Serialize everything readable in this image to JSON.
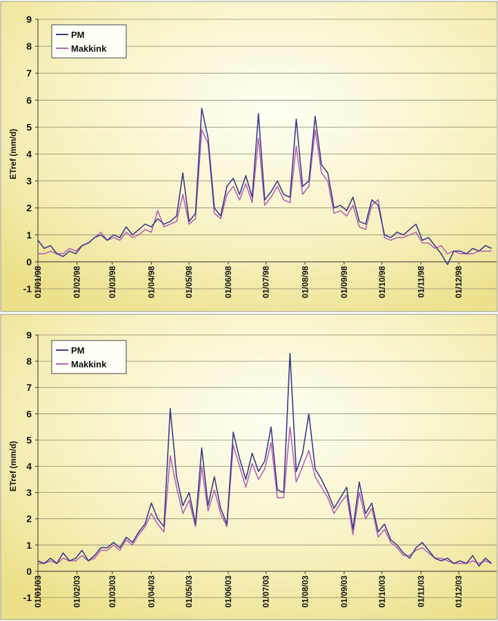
{
  "chart_data": [
    {
      "type": "line",
      "ylabel": "ETref (mm/d)",
      "x": [
        "01/01/98",
        "06/01/98",
        "11/01/98",
        "16/01/98",
        "21/01/98",
        "26/01/98",
        "31/01/98",
        "05/02/98",
        "10/02/98",
        "15/02/98",
        "20/02/98",
        "25/02/98",
        "02/03/98",
        "07/03/98",
        "12/03/98",
        "17/03/98",
        "22/03/98",
        "27/03/98",
        "01/04/98",
        "06/04/98",
        "11/04/98",
        "16/04/98",
        "21/04/98",
        "26/04/98",
        "01/05/98",
        "06/05/98",
        "11/05/98",
        "16/05/98",
        "21/05/98",
        "26/05/98",
        "31/05/98",
        "05/06/98",
        "10/06/98",
        "15/06/98",
        "20/06/98",
        "25/06/98",
        "30/06/98",
        "05/07/98",
        "10/07/98",
        "15/07/98",
        "20/07/98",
        "25/07/98",
        "30/07/98",
        "04/08/98",
        "09/08/98",
        "14/08/98",
        "19/08/98",
        "24/08/98",
        "29/08/98",
        "03/09/98",
        "08/09/98",
        "13/09/98",
        "18/09/98",
        "23/09/98",
        "28/09/98",
        "03/10/98",
        "08/10/98",
        "13/10/98",
        "18/10/98",
        "23/10/98",
        "28/10/98",
        "02/11/98",
        "07/11/98",
        "12/11/98",
        "17/11/98",
        "22/11/98",
        "27/11/98",
        "02/12/98",
        "07/12/98",
        "12/12/98",
        "17/12/98",
        "22/12/98",
        "27/12/98"
      ],
      "series": [
        {
          "name": "PM",
          "color": "#3a3a8c",
          "values": [
            0.8,
            0.5,
            0.6,
            0.3,
            0.2,
            0.4,
            0.3,
            0.6,
            0.7,
            0.9,
            1.0,
            0.8,
            1.0,
            0.9,
            1.3,
            1.0,
            1.2,
            1.4,
            1.3,
            1.6,
            1.4,
            1.5,
            1.7,
            3.3,
            1.5,
            1.8,
            5.7,
            4.6,
            2.0,
            1.7,
            2.8,
            3.1,
            2.5,
            3.2,
            2.4,
            5.5,
            2.3,
            2.6,
            3.0,
            2.5,
            2.4,
            5.3,
            2.8,
            3.0,
            5.4,
            3.6,
            3.3,
            2.0,
            2.1,
            1.9,
            2.4,
            1.5,
            1.4,
            2.3,
            2.1,
            1.0,
            0.9,
            1.1,
            1.0,
            1.2,
            1.4,
            0.8,
            0.9,
            0.6,
            0.3,
            -0.1,
            0.4,
            0.4,
            0.3,
            0.5,
            0.4,
            0.6,
            0.5
          ]
        },
        {
          "name": "Makkink",
          "color": "#b462b4",
          "values": [
            0.3,
            0.3,
            0.4,
            0.3,
            0.3,
            0.5,
            0.4,
            0.6,
            0.7,
            0.9,
            1.1,
            0.8,
            0.9,
            0.8,
            1.1,
            0.9,
            1.0,
            1.2,
            1.1,
            1.9,
            1.3,
            1.4,
            1.5,
            2.5,
            1.4,
            1.6,
            4.9,
            4.4,
            1.8,
            1.6,
            2.5,
            2.8,
            2.3,
            2.9,
            2.2,
            4.6,
            2.1,
            2.4,
            2.8,
            2.3,
            2.2,
            4.3,
            2.5,
            2.8,
            4.9,
            3.3,
            3.0,
            1.8,
            1.9,
            1.7,
            2.1,
            1.3,
            1.2,
            2.1,
            2.3,
            0.9,
            0.8,
            0.9,
            0.9,
            1.0,
            1.1,
            0.7,
            0.7,
            0.5,
            0.6,
            0.3,
            0.4,
            0.3,
            0.3,
            0.3,
            0.4,
            0.4,
            0.4
          ]
        }
      ],
      "xlim": [
        "01/01/98",
        "31/12/98"
      ],
      "xticks": [
        "01/01/98",
        "01/02/98",
        "01/03/98",
        "01/04/98",
        "01/05/98",
        "01/06/98",
        "01/07/98",
        "01/08/98",
        "01/09/98",
        "01/10/98",
        "01/11/98",
        "01/12/98"
      ],
      "ylim": [
        -1,
        9
      ],
      "yticks": [
        -1,
        0,
        1,
        2,
        3,
        4,
        5,
        6,
        7,
        8,
        9
      ],
      "grid": true,
      "legend": "top-left"
    },
    {
      "type": "line",
      "ylabel": "ETref (mm/d)",
      "x": [
        "01/01/03",
        "06/01/03",
        "11/01/03",
        "16/01/03",
        "21/01/03",
        "26/01/03",
        "31/01/03",
        "05/02/03",
        "10/02/03",
        "15/02/03",
        "20/02/03",
        "25/02/03",
        "02/03/03",
        "07/03/03",
        "12/03/03",
        "17/03/03",
        "22/03/03",
        "27/03/03",
        "01/04/03",
        "06/04/03",
        "11/04/03",
        "16/04/03",
        "21/04/03",
        "26/04/03",
        "01/05/03",
        "06/05/03",
        "11/05/03",
        "16/05/03",
        "21/05/03",
        "26/05/03",
        "31/05/03",
        "05/06/03",
        "10/06/03",
        "15/06/03",
        "20/06/03",
        "25/06/03",
        "30/06/03",
        "05/07/03",
        "10/07/03",
        "15/07/03",
        "20/07/03",
        "25/07/03",
        "30/07/03",
        "04/08/03",
        "09/08/03",
        "14/08/03",
        "19/08/03",
        "24/08/03",
        "29/08/03",
        "03/09/03",
        "08/09/03",
        "13/09/03",
        "18/09/03",
        "23/09/03",
        "28/09/03",
        "03/10/03",
        "08/10/03",
        "13/10/03",
        "18/10/03",
        "23/10/03",
        "28/10/03",
        "02/11/03",
        "07/11/03",
        "12/11/03",
        "17/11/03",
        "22/11/03",
        "27/11/03",
        "02/12/03",
        "07/12/03",
        "12/12/03",
        "17/12/03",
        "22/12/03",
        "27/12/03"
      ],
      "series": [
        {
          "name": "PM",
          "color": "#3a3a8c",
          "values": [
            0.4,
            0.3,
            0.5,
            0.3,
            0.7,
            0.4,
            0.5,
            0.8,
            0.4,
            0.6,
            0.9,
            0.9,
            1.1,
            0.9,
            1.3,
            1.1,
            1.5,
            1.8,
            2.6,
            2.0,
            1.7,
            6.2,
            3.6,
            2.5,
            3.0,
            1.8,
            4.7,
            2.5,
            3.6,
            2.4,
            1.8,
            5.3,
            4.3,
            3.5,
            4.5,
            3.8,
            4.2,
            5.5,
            3.1,
            3.0,
            8.3,
            3.8,
            4.5,
            6.0,
            3.9,
            3.5,
            3.0,
            2.4,
            2.8,
            3.2,
            1.6,
            3.4,
            2.2,
            2.6,
            1.5,
            1.8,
            1.2,
            1.0,
            0.7,
            0.5,
            0.9,
            1.1,
            0.8,
            0.5,
            0.4,
            0.5,
            0.3,
            0.4,
            0.3,
            0.6,
            0.2,
            0.5,
            0.3
          ]
        },
        {
          "name": "Makkink",
          "color": "#b462b4",
          "values": [
            0.3,
            0.3,
            0.4,
            0.3,
            0.5,
            0.4,
            0.4,
            0.6,
            0.4,
            0.5,
            0.8,
            0.8,
            1.0,
            0.8,
            1.2,
            1.0,
            1.4,
            1.7,
            2.2,
            1.8,
            1.5,
            4.4,
            3.2,
            2.2,
            2.7,
            1.7,
            4.0,
            2.3,
            3.1,
            2.2,
            1.7,
            4.8,
            4.0,
            3.2,
            4.1,
            3.5,
            3.9,
            4.9,
            2.8,
            2.8,
            5.5,
            3.4,
            4.0,
            4.6,
            3.6,
            3.2,
            2.8,
            2.2,
            2.6,
            2.9,
            1.4,
            3.0,
            2.0,
            2.4,
            1.3,
            1.6,
            1.1,
            0.9,
            0.6,
            0.6,
            0.8,
            0.9,
            0.7,
            0.5,
            0.5,
            0.4,
            0.3,
            0.3,
            0.3,
            0.4,
            0.3,
            0.4,
            0.3
          ]
        }
      ],
      "xlim": [
        "01/01/03",
        "31/12/03"
      ],
      "xticks": [
        "01/01/03",
        "01/02/03",
        "01/03/03",
        "01/04/03",
        "01/05/03",
        "01/06/03",
        "01/07/03",
        "01/08/03",
        "01/09/03",
        "01/10/03",
        "01/11/03",
        "01/12/03"
      ],
      "ylim": [
        -1,
        9
      ],
      "yticks": [
        -1,
        0,
        1,
        2,
        3,
        4,
        5,
        6,
        7,
        8,
        9
      ],
      "grid": true,
      "legend": "top-left"
    }
  ]
}
